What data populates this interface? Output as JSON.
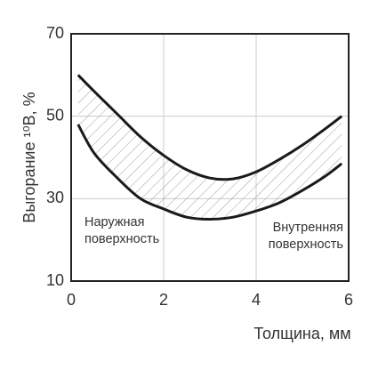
{
  "chart_data": {
    "type": "line",
    "xlabel": "Толщина, мм",
    "ylabel": "Выгорание ¹⁰B, %",
    "x": [
      0.15,
      0.5,
      1,
      1.5,
      2,
      2.5,
      3,
      3.5,
      4,
      4.5,
      5,
      5.5,
      5.85
    ],
    "series": [
      {
        "color": "#1a1a1a",
        "values": [
          60,
          56,
          50.5,
          45,
          40.5,
          37,
          35,
          34.8,
          36.5,
          39.5,
          43,
          47,
          50
        ]
      },
      {
        "color": "#1a1a1a",
        "values": [
          48,
          41,
          35,
          30,
          27.5,
          25.5,
          25,
          25.5,
          27,
          29,
          32,
          35.5,
          38.5
        ]
      }
    ],
    "xlim": [
      0,
      6
    ],
    "xticks": [
      0,
      2,
      4,
      6
    ],
    "ylim": [
      10,
      70
    ],
    "yticks": [
      10,
      30,
      50,
      70
    ],
    "grid": true,
    "annotations": [
      [
        "Наружная",
        "поверхность"
      ],
      [
        "Внутренняя",
        "поверхность"
      ]
    ]
  }
}
